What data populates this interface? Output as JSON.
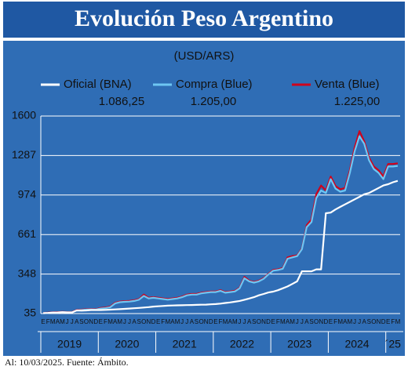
{
  "chart_data": {
    "type": "line",
    "title": "Evolución Peso Argentino",
    "subtitle": "(USD/ARS)",
    "footer": "Al: 10/03/2025. Fuente: Ámbito.",
    "categories": [
      "E",
      "F",
      "M",
      "A",
      "M",
      "J",
      "J",
      "A",
      "S",
      "O",
      "N",
      "D",
      "E",
      "F",
      "M",
      "A",
      "M",
      "J",
      "J",
      "A",
      "S",
      "O",
      "N",
      "D",
      "E",
      "F",
      "M",
      "A",
      "M",
      "J",
      "J",
      "A",
      "S",
      "O",
      "N",
      "D",
      "E",
      "F",
      "M",
      "A",
      "M",
      "J",
      "J",
      "A",
      "S",
      "O",
      "N",
      "D",
      "E",
      "F",
      "M",
      "A",
      "M",
      "J",
      "J",
      "A",
      "S",
      "O",
      "N",
      "D",
      "E",
      "F",
      "M",
      "A",
      "M",
      "J",
      "J",
      "A",
      "S",
      "O",
      "N",
      "D",
      "E",
      "F",
      "M"
    ],
    "year_labels": [
      "2019",
      "2020",
      "2021",
      "2022",
      "2023",
      "2024",
      "´25"
    ],
    "ylim": [
      35,
      1600
    ],
    "yticks": [
      35,
      348,
      661,
      974,
      1287,
      1600
    ],
    "grid": true,
    "series": [
      {
        "name": "Oficial (BNA)",
        "color": "#ffffff",
        "values": [
          38,
          40,
          43,
          44,
          46,
          44,
          44,
          60,
          58,
          60,
          63,
          63,
          63,
          64,
          66,
          68,
          70,
          72,
          75,
          77,
          80,
          83,
          86,
          90,
          93,
          95,
          98,
          99,
          100,
          101,
          102,
          103,
          104,
          105,
          106,
          108,
          110,
          114,
          119,
          123,
          129,
          135,
          144,
          154,
          165,
          180,
          190,
          202,
          209,
          220,
          235,
          250,
          270,
          290,
          370,
          370,
          370,
          385,
          385,
          830,
          835,
          860,
          880,
          900,
          920,
          940,
          960,
          980,
          990,
          1010,
          1030,
          1050,
          1060,
          1075,
          1086.25
        ],
        "value_labels": [
          null,
          null,
          null,
          null,
          null,
          null,
          null,
          null,
          null,
          null,
          null,
          null,
          null,
          null,
          null,
          null,
          null,
          null,
          null,
          null,
          null,
          null,
          null,
          null,
          null,
          null,
          null,
          null,
          null,
          null,
          null,
          null,
          null,
          null,
          null,
          null,
          null,
          null,
          null,
          null,
          null,
          null,
          null,
          null,
          null,
          null,
          null,
          null,
          null,
          null,
          null,
          null,
          null,
          null,
          null,
          null,
          null,
          null,
          null,
          null,
          null,
          null,
          null,
          null,
          null,
          null,
          null,
          null,
          null,
          null,
          null,
          null,
          null,
          null,
          "1.086,25"
        ]
      },
      {
        "name": "Compra (Blue)",
        "color": "#6ec6f2",
        "values": [
          38,
          40,
          43,
          44,
          46,
          45,
          45,
          60,
          63,
          66,
          68,
          66,
          75,
          78,
          85,
          115,
          125,
          128,
          130,
          135,
          145,
          175,
          155,
          160,
          155,
          150,
          145,
          150,
          155,
          165,
          180,
          185,
          185,
          195,
          200,
          205,
          205,
          215,
          200,
          205,
          210,
          235,
          315,
          290,
          280,
          290,
          310,
          345,
          375,
          380,
          390,
          470,
          480,
          490,
          545,
          720,
          760,
          950,
          1010,
          990,
          1100,
          1025,
          1000,
          1010,
          1150,
          1320,
          1440,
          1380,
          1250,
          1180,
          1150,
          1100,
          1200,
          1200,
          1205
        ],
        "value_labels": [
          null,
          null,
          null,
          null,
          null,
          null,
          null,
          null,
          null,
          null,
          null,
          null,
          null,
          null,
          null,
          null,
          null,
          null,
          null,
          null,
          null,
          null,
          null,
          null,
          null,
          null,
          null,
          null,
          null,
          null,
          null,
          null,
          null,
          null,
          null,
          null,
          null,
          null,
          null,
          null,
          null,
          null,
          null,
          null,
          null,
          null,
          null,
          null,
          null,
          null,
          null,
          null,
          null,
          null,
          null,
          null,
          null,
          null,
          null,
          null,
          null,
          null,
          null,
          null,
          null,
          null,
          null,
          null,
          null,
          null,
          null,
          null,
          null,
          null,
          "1.205,00"
        ]
      },
      {
        "name": "Venta (Blue)",
        "color": "#d0021b",
        "values": [
          40,
          42,
          45,
          46,
          48,
          47,
          47,
          63,
          66,
          69,
          71,
          69,
          80,
          83,
          90,
          120,
          130,
          133,
          135,
          140,
          150,
          185,
          160,
          165,
          160,
          155,
          150,
          155,
          160,
          170,
          185,
          190,
          190,
          200,
          205,
          210,
          210,
          220,
          205,
          210,
          215,
          240,
          325,
          295,
          285,
          295,
          315,
          350,
          380,
          385,
          395,
          480,
          490,
          495,
          550,
          735,
          780,
          980,
          1050,
          1010,
          1120,
          1045,
          1020,
          1030,
          1170,
          1350,
          1480,
          1400,
          1270,
          1200,
          1170,
          1120,
          1220,
          1220,
          1225
        ],
        "value_labels": [
          null,
          null,
          null,
          null,
          null,
          null,
          null,
          null,
          null,
          null,
          null,
          null,
          null,
          null,
          null,
          null,
          null,
          null,
          null,
          null,
          null,
          null,
          null,
          null,
          null,
          null,
          null,
          null,
          null,
          null,
          null,
          null,
          null,
          null,
          null,
          null,
          null,
          null,
          null,
          null,
          null,
          null,
          null,
          null,
          null,
          null,
          null,
          null,
          null,
          null,
          null,
          null,
          null,
          null,
          null,
          null,
          null,
          null,
          null,
          null,
          null,
          null,
          null,
          null,
          null,
          null,
          null,
          null,
          null,
          null,
          null,
          null,
          null,
          null,
          "1.225,00"
        ]
      }
    ]
  }
}
